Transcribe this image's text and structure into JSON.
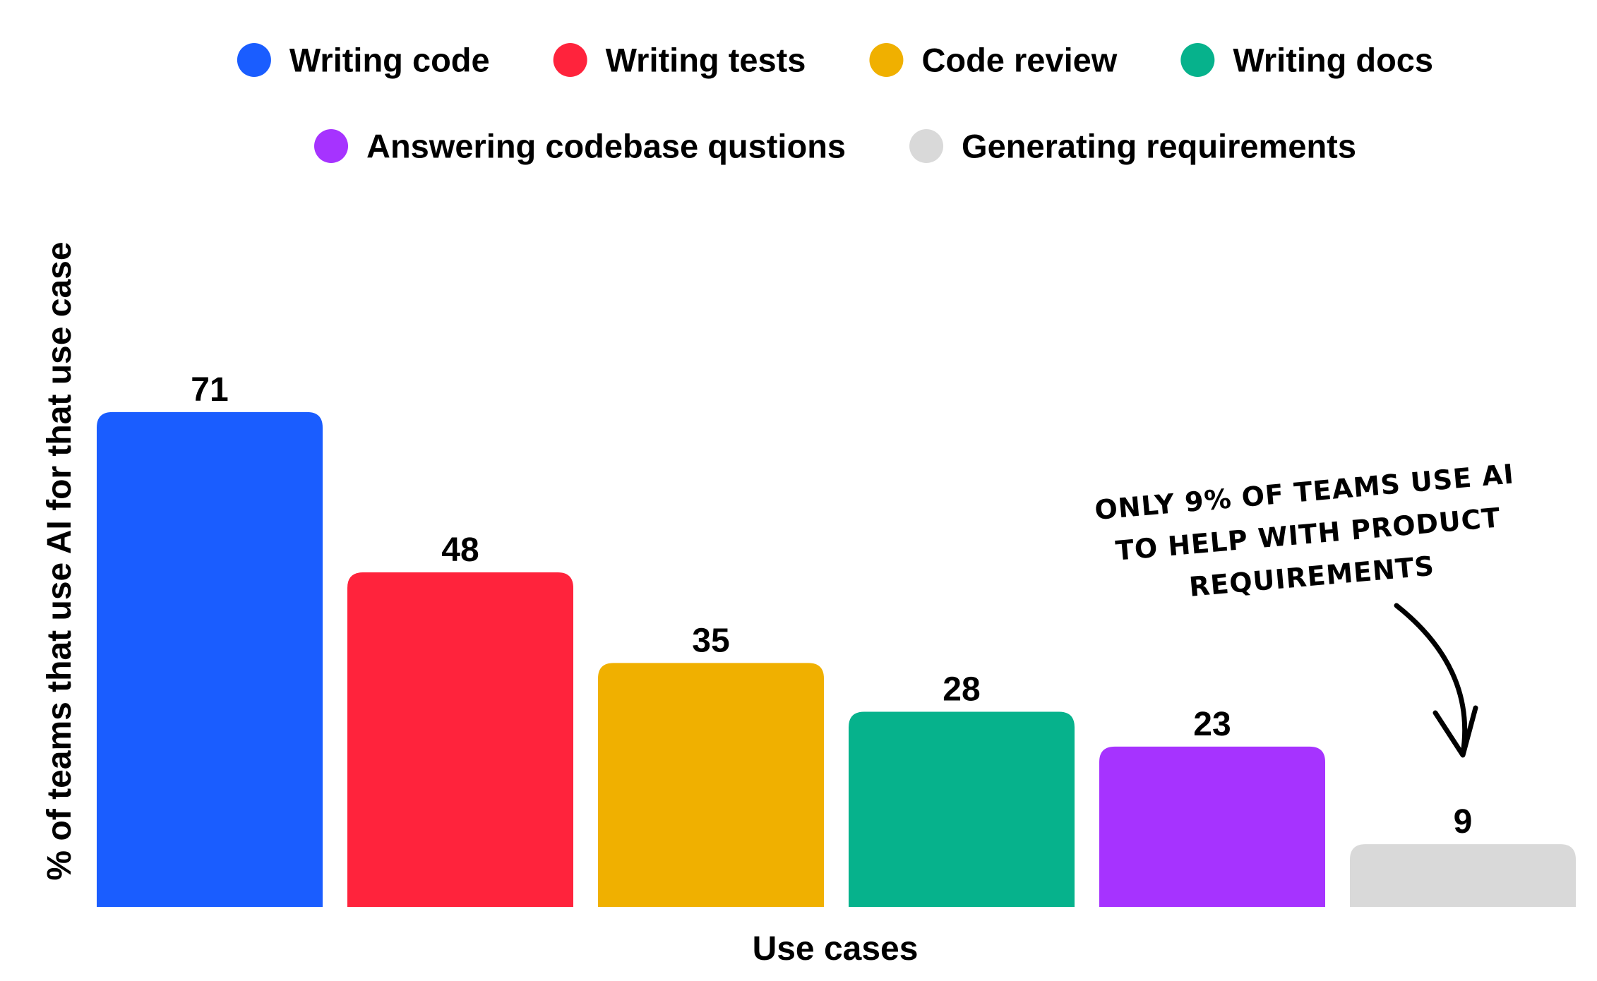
{
  "chart_data": {
    "type": "bar",
    "categories": [
      "Writing code",
      "Writing tests",
      "Code review",
      "Writing docs",
      "Answering codebase qustions",
      "Generating requirements"
    ],
    "values": [
      71,
      48,
      35,
      28,
      23,
      9
    ],
    "colors": [
      "#1a5dff",
      "#ff233c",
      "#f0b000",
      "#06b28c",
      "#a633ff",
      "#d9d9d9"
    ],
    "xlabel": "Use cases",
    "ylabel": "% of teams that use AI for that use case",
    "ylim": [
      0,
      80
    ],
    "grid": false,
    "legend_position": "top",
    "annotation": {
      "lines": [
        "ONLY 9% OF TEAMS USE AI",
        "TO HELP WITH PRODUCT",
        "REQUIREMENTS"
      ],
      "target_category": "Generating requirements"
    }
  }
}
